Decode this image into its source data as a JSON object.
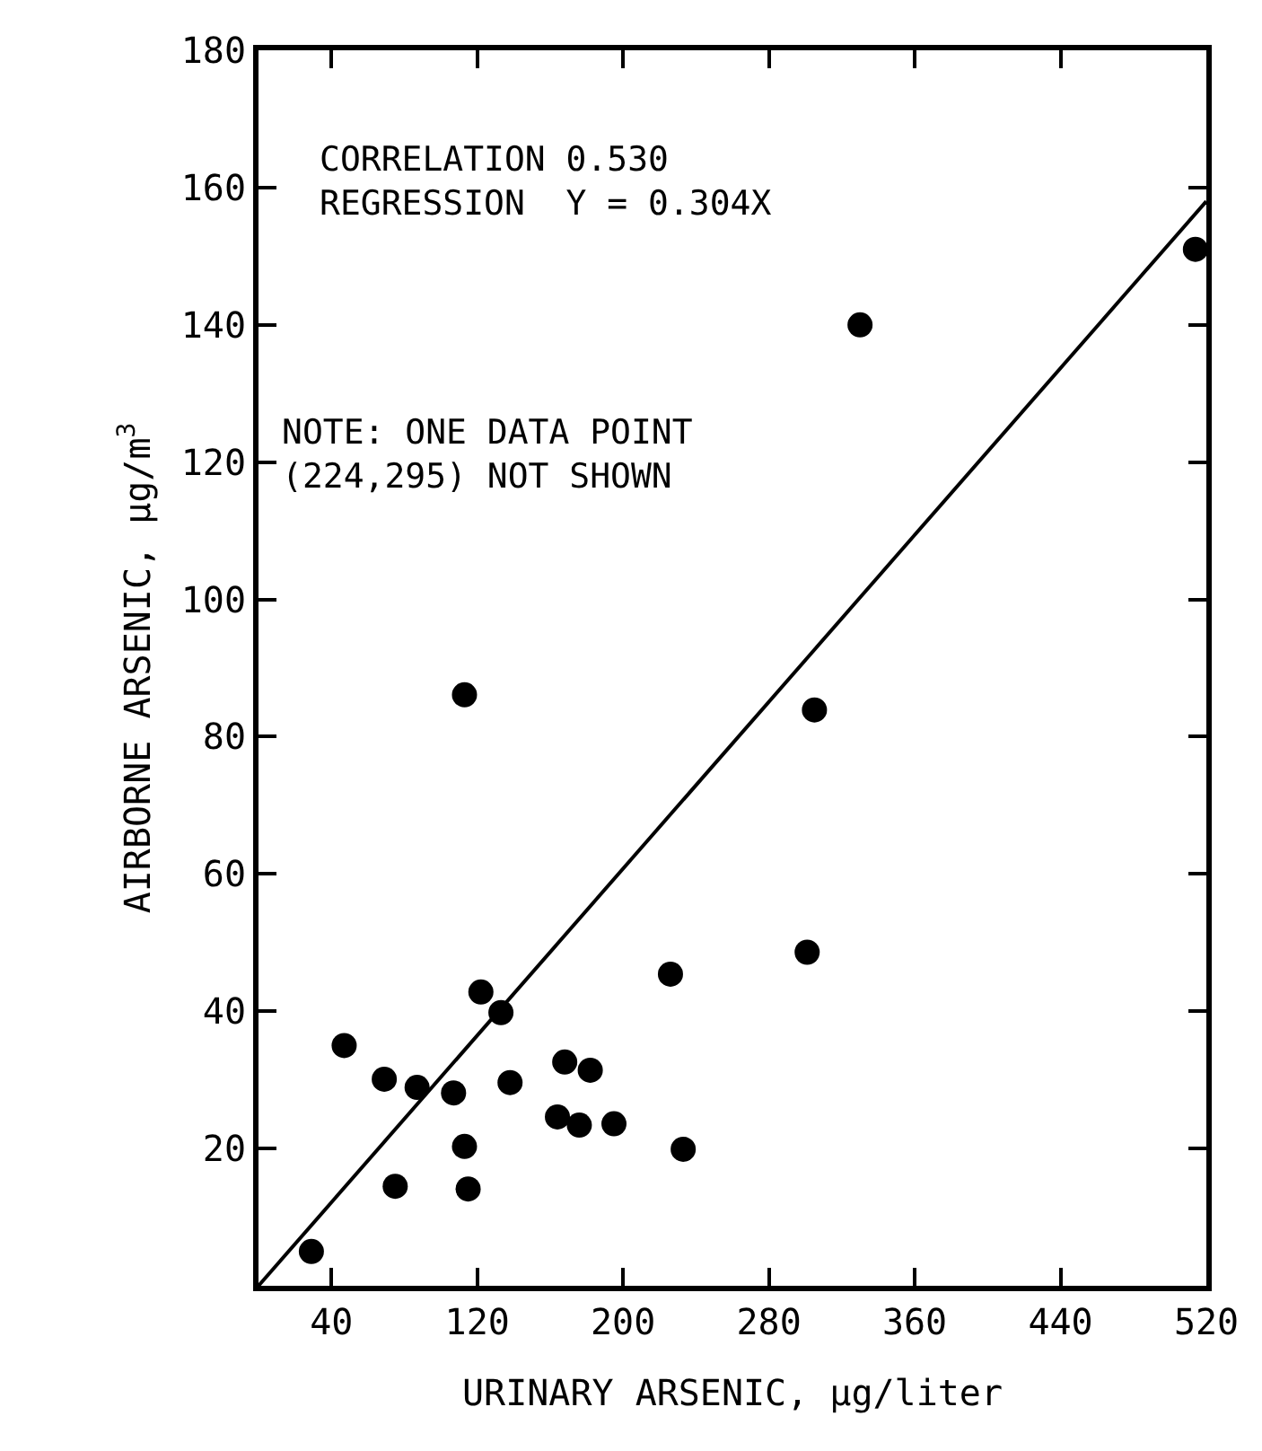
{
  "chart_data": {
    "type": "scatter",
    "xlabel": "URINARY ARSENIC, µg/liter",
    "ylabel": "AIRBORNE ARSENIC, µg/m$^{3}$",
    "annotations": [
      "CORRELATION 0.530\nREGRESSION  Y = 0.304X",
      "NOTE: ONE DATA POINT\n(224,295) NOT SHOWN"
    ],
    "series": [
      {
        "color": "#000000",
        "marker": "circle",
        "x": [
          29,
          47,
          69,
          75,
          87,
          107,
          113,
          113,
          115,
          122,
          133,
          138,
          164,
          168,
          176,
          182,
          195,
          226,
          233,
          301,
          305,
          330,
          514
        ],
        "values": [
          5,
          35,
          30.1,
          14.5,
          28.9,
          28.1,
          86.1,
          20.3,
          14.1,
          42.8,
          39.8,
          29.6,
          24.6,
          32.6,
          23.4,
          31.4,
          23.6,
          45.4,
          19.9,
          48.6,
          83.9,
          140,
          151
        ]
      },
      {
        "type": "line",
        "color": "#000000",
        "line_style": "solid",
        "x": [
          0,
          520
        ],
        "values": [
          0,
          158
        ]
      }
    ],
    "xlim": [
      0,
      520
    ],
    "xticks": [
      40,
      120,
      200,
      280,
      360,
      440,
      520
    ],
    "ylim": [
      0,
      180
    ],
    "yticks": [
      20,
      40,
      60,
      80,
      100,
      120,
      140,
      160,
      180
    ]
  }
}
